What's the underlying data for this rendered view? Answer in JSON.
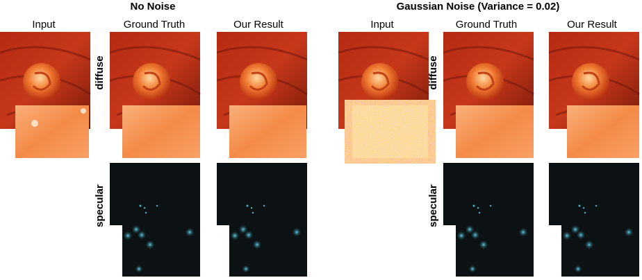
{
  "groups": [
    {
      "title": "No Noise",
      "columns": [
        "Input",
        "Ground Truth",
        "Our Result"
      ],
      "rows": [
        "diffuse",
        "specular"
      ]
    },
    {
      "title": "Gaussian Noise (Variance = 0.02)",
      "columns": [
        "Input",
        "Ground Truth",
        "Our Result"
      ],
      "rows": [
        "diffuse",
        "specular"
      ]
    }
  ]
}
